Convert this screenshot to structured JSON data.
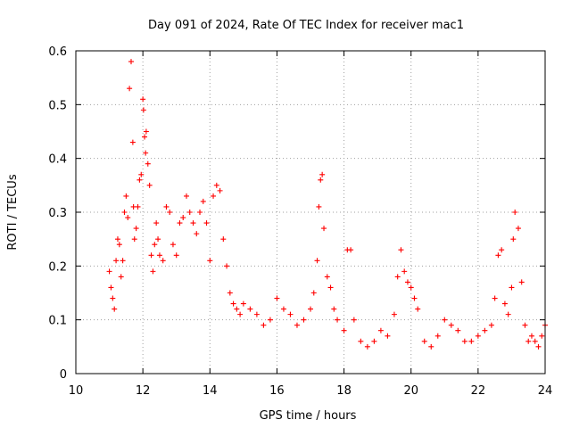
{
  "chart_data": {
    "type": "scatter",
    "title": "Day 091 of 2024, Rate Of TEC Index for receiver mac1",
    "xlabel": "GPS time / hours",
    "ylabel": "ROTI / TECUs",
    "xlim": [
      10,
      24
    ],
    "ylim": [
      0,
      0.6
    ],
    "x_ticks": [
      10,
      12,
      14,
      16,
      18,
      20,
      22,
      24
    ],
    "x_tick_labels": [
      "10",
      "12",
      "14",
      "16",
      "18",
      "20",
      "22",
      "24"
    ],
    "y_ticks": [
      0,
      0.1,
      0.2,
      0.3,
      0.4,
      0.5,
      0.6
    ],
    "y_tick_labels": [
      "0",
      "0.1",
      "0.2",
      "0.3",
      "0.4",
      "0.5",
      "0.6"
    ],
    "grid": true,
    "marker": "+",
    "color": "#ff0000",
    "series": [
      {
        "name": "mac1",
        "x": [
          11.0,
          11.05,
          11.1,
          11.15,
          11.2,
          11.25,
          11.3,
          11.35,
          11.4,
          11.45,
          11.5,
          11.55,
          11.6,
          11.65,
          11.7,
          11.72,
          11.75,
          11.8,
          11.85,
          11.9,
          11.95,
          12.0,
          12.02,
          12.05,
          12.08,
          12.1,
          12.15,
          12.2,
          12.25,
          12.3,
          12.35,
          12.4,
          12.45,
          12.5,
          12.6,
          12.7,
          12.8,
          12.9,
          13.0,
          13.1,
          13.2,
          13.3,
          13.4,
          13.5,
          13.6,
          13.7,
          13.8,
          13.9,
          14.0,
          14.1,
          14.2,
          14.3,
          14.4,
          14.5,
          14.6,
          14.7,
          14.8,
          14.9,
          15.0,
          15.2,
          15.4,
          15.6,
          15.8,
          16.0,
          16.2,
          16.4,
          16.6,
          16.8,
          17.0,
          17.1,
          17.2,
          17.25,
          17.3,
          17.35,
          17.4,
          17.5,
          17.6,
          17.7,
          17.8,
          18.0,
          18.1,
          18.2,
          18.3,
          18.5,
          18.7,
          18.9,
          19.1,
          19.3,
          19.5,
          19.6,
          19.7,
          19.8,
          19.9,
          20.0,
          20.1,
          20.2,
          20.4,
          20.6,
          20.8,
          21.0,
          21.2,
          21.4,
          21.6,
          21.8,
          22.0,
          22.2,
          22.4,
          22.5,
          22.6,
          22.7,
          22.8,
          22.9,
          23.0,
          23.05,
          23.1,
          23.2,
          23.3,
          23.4,
          23.5,
          23.6,
          23.7,
          23.8,
          23.9,
          24.0
        ],
        "y": [
          0.19,
          0.16,
          0.14,
          0.12,
          0.21,
          0.25,
          0.24,
          0.18,
          0.21,
          0.3,
          0.33,
          0.29,
          0.53,
          0.58,
          0.43,
          0.31,
          0.25,
          0.27,
          0.31,
          0.36,
          0.37,
          0.51,
          0.49,
          0.44,
          0.41,
          0.45,
          0.39,
          0.35,
          0.22,
          0.19,
          0.24,
          0.28,
          0.25,
          0.22,
          0.21,
          0.31,
          0.3,
          0.24,
          0.22,
          0.28,
          0.29,
          0.33,
          0.3,
          0.28,
          0.26,
          0.3,
          0.32,
          0.28,
          0.21,
          0.33,
          0.35,
          0.34,
          0.25,
          0.2,
          0.15,
          0.13,
          0.12,
          0.11,
          0.13,
          0.12,
          0.11,
          0.09,
          0.1,
          0.14,
          0.12,
          0.11,
          0.09,
          0.1,
          0.12,
          0.15,
          0.21,
          0.31,
          0.36,
          0.37,
          0.27,
          0.18,
          0.16,
          0.12,
          0.1,
          0.08,
          0.23,
          0.23,
          0.1,
          0.06,
          0.05,
          0.06,
          0.08,
          0.07,
          0.11,
          0.18,
          0.23,
          0.19,
          0.17,
          0.16,
          0.14,
          0.12,
          0.06,
          0.05,
          0.07,
          0.1,
          0.09,
          0.08,
          0.06,
          0.06,
          0.07,
          0.08,
          0.09,
          0.14,
          0.22,
          0.23,
          0.13,
          0.11,
          0.16,
          0.25,
          0.3,
          0.27,
          0.17,
          0.09,
          0.06,
          0.07,
          0.06,
          0.05,
          0.07,
          0.09
        ]
      }
    ]
  }
}
